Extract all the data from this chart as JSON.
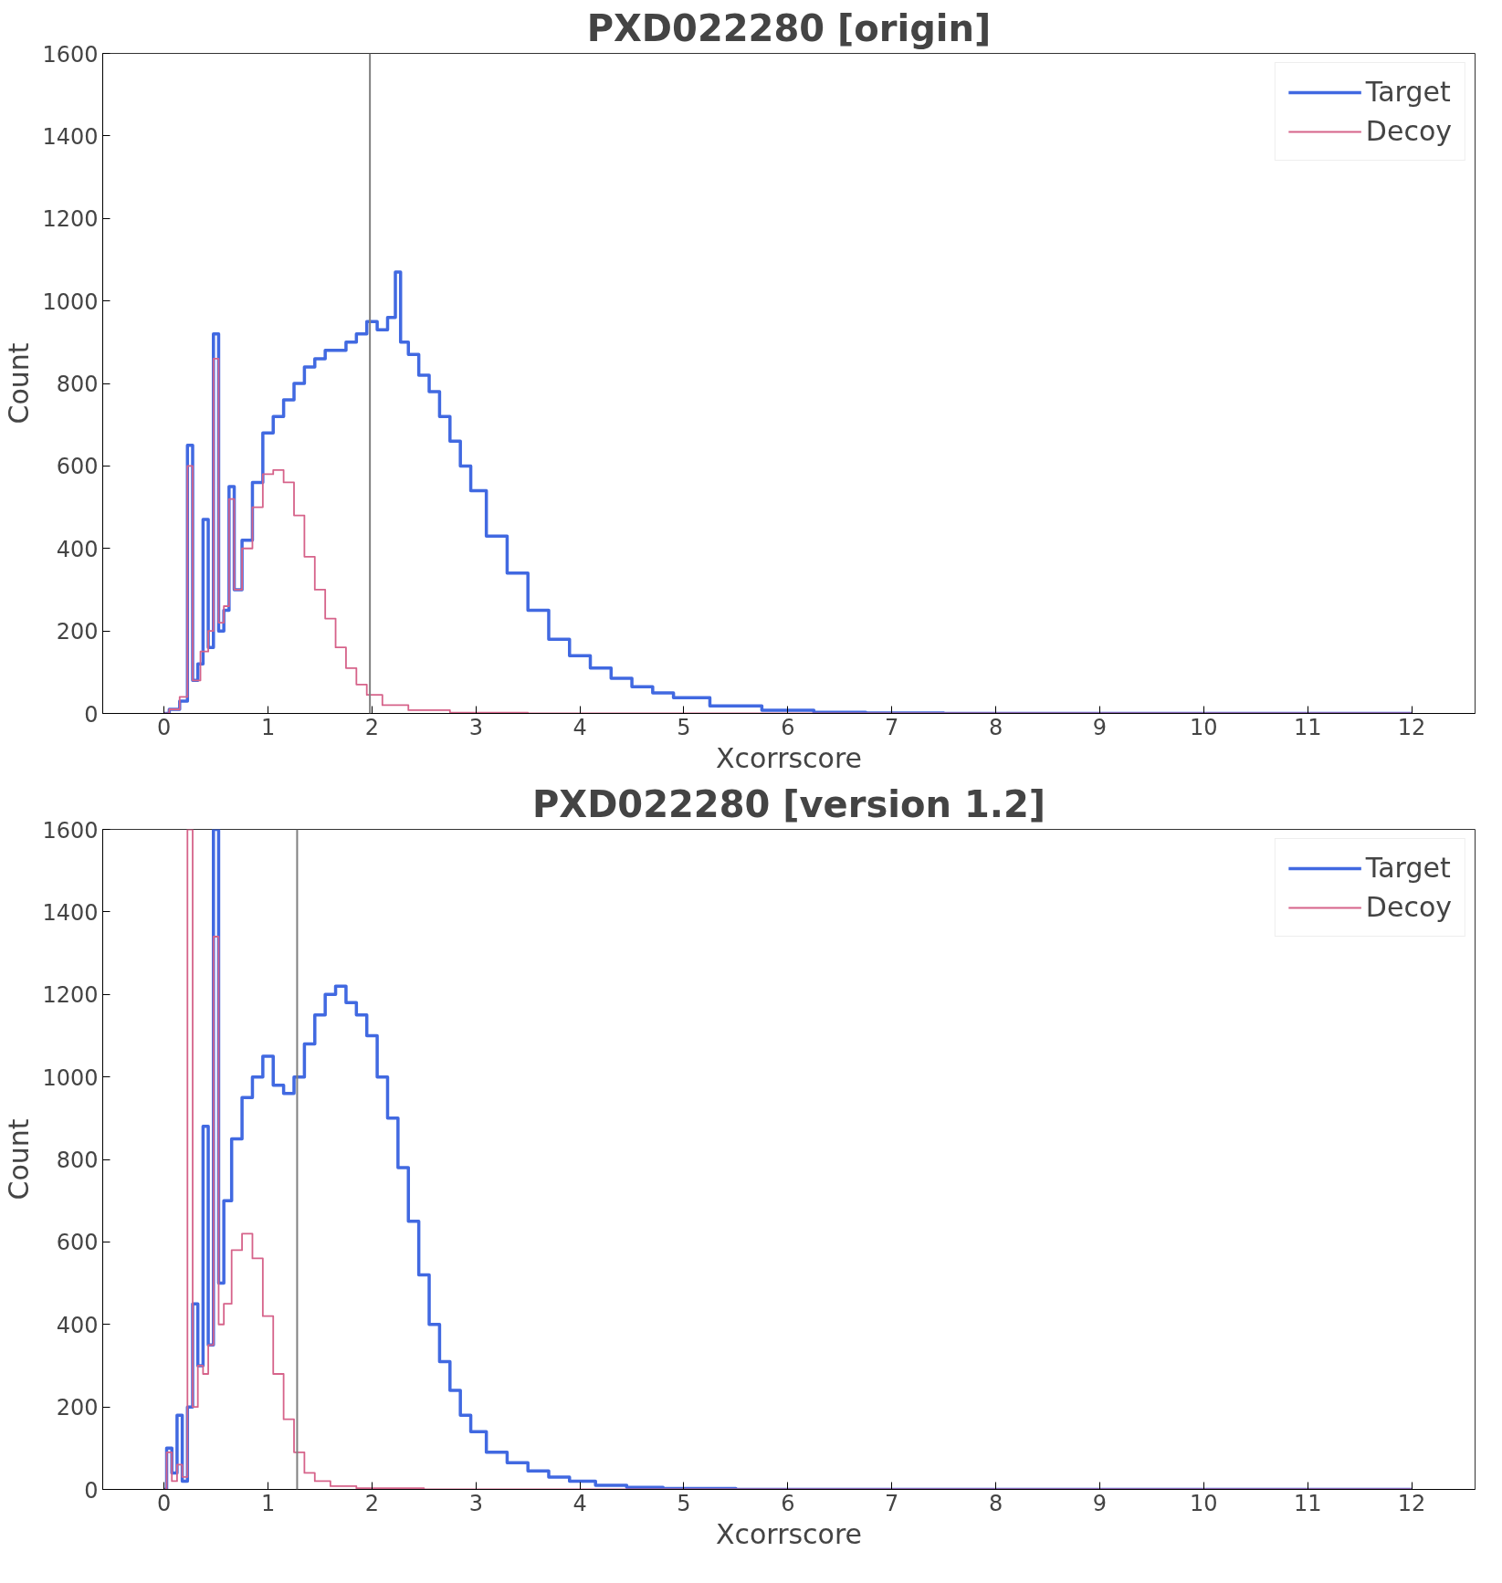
{
  "chart_data": [
    {
      "type": "step",
      "title": "PXD022280 [origin]",
      "xlabel": "Xcorrscore",
      "ylabel": "Count",
      "xlim": [
        -0.59,
        12.61
      ],
      "ylim": [
        0,
        1600
      ],
      "xticks": [
        0,
        1,
        2,
        3,
        4,
        5,
        6,
        7,
        8,
        9,
        10,
        11,
        12
      ],
      "yticks": [
        0,
        200,
        400,
        600,
        800,
        1000,
        1200,
        1400,
        1600
      ],
      "grid": false,
      "legend": "top right",
      "ref_lines": [
        {
          "axis": "x",
          "value": 1.98,
          "color": "#808080"
        }
      ],
      "series": [
        {
          "name": "Target",
          "color": "#4169e1",
          "x": [
            0,
            0.1,
            0.2,
            0.25,
            0.3,
            0.35,
            0.4,
            0.45,
            0.5,
            0.55,
            0.6,
            0.65,
            0.7,
            0.8,
            0.9,
            1.0,
            1.1,
            1.2,
            1.3,
            1.4,
            1.5,
            1.6,
            1.7,
            1.8,
            1.9,
            2.0,
            2.1,
            2.2,
            2.25,
            2.3,
            2.4,
            2.5,
            2.6,
            2.7,
            2.8,
            2.9,
            3.0,
            3.2,
            3.4,
            3.6,
            3.8,
            4.0,
            4.2,
            4.4,
            4.6,
            4.8,
            5.0,
            5.5,
            6.0,
            6.5,
            7,
            8,
            12
          ],
          "values": [
            0,
            10,
            30,
            650,
            80,
            120,
            470,
            160,
            920,
            200,
            250,
            550,
            300,
            420,
            560,
            680,
            720,
            760,
            800,
            840,
            860,
            880,
            880,
            900,
            920,
            950,
            930,
            960,
            1070,
            900,
            870,
            820,
            780,
            720,
            660,
            600,
            540,
            430,
            340,
            250,
            180,
            140,
            110,
            85,
            65,
            50,
            38,
            18,
            8,
            3,
            1,
            0,
            0
          ]
        },
        {
          "name": "Decoy",
          "color": "#d6638a",
          "x": [
            0,
            0.1,
            0.2,
            0.25,
            0.3,
            0.4,
            0.45,
            0.5,
            0.55,
            0.6,
            0.65,
            0.7,
            0.8,
            0.9,
            1.0,
            1.1,
            1.2,
            1.3,
            1.4,
            1.5,
            1.6,
            1.7,
            1.8,
            1.9,
            2.0,
            2.2,
            2.5,
            3,
            4,
            12
          ],
          "values": [
            0,
            10,
            40,
            600,
            80,
            150,
            200,
            860,
            220,
            260,
            520,
            300,
            400,
            500,
            580,
            590,
            560,
            480,
            380,
            300,
            230,
            160,
            110,
            70,
            45,
            20,
            8,
            2,
            0,
            0
          ]
        }
      ]
    },
    {
      "type": "step",
      "title": "PXD022280 [version 1.2]",
      "xlabel": "Xcorrscore",
      "ylabel": "Count",
      "xlim": [
        -0.59,
        12.61
      ],
      "ylim": [
        0,
        1600
      ],
      "xticks": [
        0,
        1,
        2,
        3,
        4,
        5,
        6,
        7,
        8,
        9,
        10,
        11,
        12
      ],
      "yticks": [
        0,
        200,
        400,
        600,
        800,
        1000,
        1200,
        1400,
        1600
      ],
      "grid": false,
      "legend": "top right",
      "ref_lines": [
        {
          "axis": "x",
          "value": 1.28,
          "color": "#808080"
        }
      ],
      "series": [
        {
          "name": "Target",
          "color": "#4169e1",
          "x": [
            0,
            0.05,
            0.1,
            0.15,
            0.2,
            0.25,
            0.3,
            0.35,
            0.4,
            0.45,
            0.5,
            0.55,
            0.6,
            0.7,
            0.8,
            0.9,
            1.0,
            1.1,
            1.2,
            1.3,
            1.4,
            1.5,
            1.6,
            1.7,
            1.8,
            1.9,
            2.0,
            2.1,
            2.2,
            2.3,
            2.4,
            2.5,
            2.6,
            2.7,
            2.8,
            2.9,
            3.0,
            3.2,
            3.4,
            3.6,
            3.8,
            4.0,
            4.3,
            4.6,
            5,
            6,
            12
          ],
          "values": [
            0,
            100,
            40,
            180,
            20,
            200,
            450,
            300,
            880,
            350,
            1600,
            500,
            700,
            850,
            950,
            1000,
            1050,
            980,
            960,
            1000,
            1080,
            1150,
            1200,
            1220,
            1180,
            1150,
            1100,
            1000,
            900,
            780,
            650,
            520,
            400,
            310,
            240,
            180,
            140,
            90,
            65,
            45,
            30,
            20,
            10,
            5,
            2,
            0,
            0
          ]
        },
        {
          "name": "Decoy",
          "color": "#d6638a",
          "x": [
            0,
            0.05,
            0.1,
            0.15,
            0.2,
            0.25,
            0.3,
            0.35,
            0.4,
            0.45,
            0.5,
            0.55,
            0.6,
            0.7,
            0.8,
            0.9,
            1.0,
            1.1,
            1.2,
            1.3,
            1.4,
            1.5,
            1.7,
            2,
            3,
            12
          ],
          "values": [
            0,
            90,
            20,
            60,
            30,
            1600,
            200,
            300,
            280,
            350,
            1340,
            400,
            450,
            580,
            620,
            560,
            420,
            280,
            170,
            90,
            40,
            20,
            8,
            3,
            0,
            0
          ]
        }
      ]
    }
  ]
}
